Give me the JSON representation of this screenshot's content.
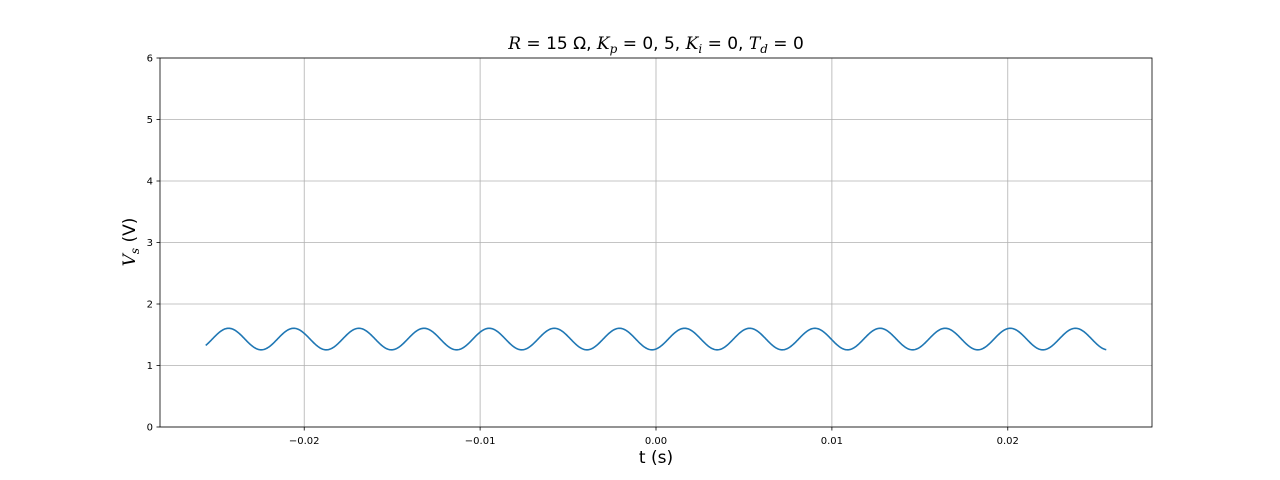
{
  "chart_data": {
    "type": "line",
    "title": {
      "R_var": "R",
      "R_val": " = 15 Ω, ",
      "Kp_var": "K",
      "Kp_sub": "p",
      "Kp_val": " = 0, 5, ",
      "Ki_var": "K",
      "Ki_sub": "i",
      "Ki_val": " = 0, ",
      "Td_var": "T",
      "Td_sub": "d",
      "Td_val": " = 0"
    },
    "xlabel": "t (s)",
    "ylabel": {
      "var": "V",
      "sub": "s",
      "unit": " (V)"
    },
    "xlim": [
      -0.0282,
      0.0282
    ],
    "ylim": [
      0,
      6
    ],
    "xticks": [
      -0.02,
      -0.01,
      0.0,
      0.01,
      0.02
    ],
    "xtick_labels": [
      "−0.02",
      "−0.01",
      "0.00",
      "0.01",
      "0.02"
    ],
    "yticks": [
      0,
      1,
      2,
      3,
      4,
      5,
      6
    ],
    "ytick_labels": [
      "0",
      "1",
      "2",
      "3",
      "4",
      "5",
      "6"
    ],
    "grid": true,
    "series": [
      {
        "color": "#1f77b4",
        "signal": {
          "t_start": -0.0256,
          "t_end": 0.0256,
          "offset": 1.43,
          "amplitude": 0.175,
          "frequency_hz": 270,
          "first_peak_t": -0.0243
        }
      }
    ]
  }
}
